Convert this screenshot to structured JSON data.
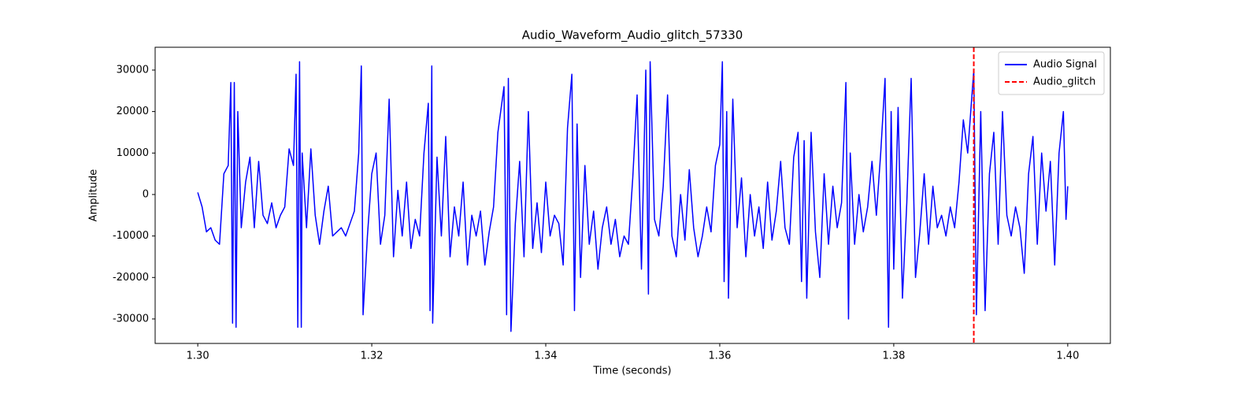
{
  "chart_data": {
    "type": "line",
    "title": "Audio_Waveform_Audio_glitch_57330",
    "xlabel": "Time (seconds)",
    "ylabel": "Amplitude",
    "x": [
      1.3,
      1.3005,
      1.301,
      1.3015,
      1.302,
      1.3025,
      1.303,
      1.3035,
      1.3038,
      1.304,
      1.3042,
      1.3044,
      1.3046,
      1.305,
      1.3055,
      1.306,
      1.3065,
      1.307,
      1.3075,
      1.308,
      1.3085,
      1.309,
      1.3095,
      1.31,
      1.3105,
      1.311,
      1.3113,
      1.3115,
      1.3117,
      1.3119,
      1.312,
      1.3125,
      1.313,
      1.3135,
      1.314,
      1.3145,
      1.315,
      1.3155,
      1.316,
      1.3165,
      1.317,
      1.3175,
      1.318,
      1.3185,
      1.3188,
      1.319,
      1.3195,
      1.32,
      1.3205,
      1.321,
      1.3215,
      1.322,
      1.3225,
      1.323,
      1.3235,
      1.324,
      1.3245,
      1.325,
      1.3255,
      1.326,
      1.3265,
      1.3267,
      1.3269,
      1.327,
      1.3275,
      1.328,
      1.3285,
      1.329,
      1.3295,
      1.33,
      1.3305,
      1.331,
      1.3315,
      1.332,
      1.3325,
      1.333,
      1.3335,
      1.334,
      1.3345,
      1.3352,
      1.3355,
      1.3357,
      1.336,
      1.3365,
      1.337,
      1.3375,
      1.338,
      1.3385,
      1.339,
      1.3395,
      1.34,
      1.3405,
      1.341,
      1.3415,
      1.342,
      1.3425,
      1.343,
      1.3433,
      1.3436,
      1.344,
      1.3445,
      1.345,
      1.3455,
      1.346,
      1.3465,
      1.347,
      1.3475,
      1.348,
      1.3485,
      1.349,
      1.3495,
      1.35,
      1.3505,
      1.351,
      1.3515,
      1.3518,
      1.352,
      1.3525,
      1.353,
      1.3535,
      1.354,
      1.3545,
      1.355,
      1.3555,
      1.356,
      1.3565,
      1.357,
      1.3575,
      1.358,
      1.3585,
      1.359,
      1.3595,
      1.36,
      1.3603,
      1.3605,
      1.3608,
      1.361,
      1.3615,
      1.362,
      1.3625,
      1.363,
      1.3635,
      1.364,
      1.3645,
      1.365,
      1.3655,
      1.366,
      1.3665,
      1.367,
      1.3675,
      1.368,
      1.3685,
      1.369,
      1.3694,
      1.3697,
      1.37,
      1.3705,
      1.371,
      1.3715,
      1.372,
      1.3725,
      1.373,
      1.3735,
      1.374,
      1.3745,
      1.3748,
      1.375,
      1.3755,
      1.376,
      1.3765,
      1.377,
      1.3775,
      1.378,
      1.3785,
      1.379,
      1.3794,
      1.3797,
      1.38,
      1.3805,
      1.381,
      1.3815,
      1.382,
      1.3825,
      1.383,
      1.3835,
      1.384,
      1.3845,
      1.385,
      1.3855,
      1.386,
      1.3865,
      1.387,
      1.3875,
      1.388,
      1.3885,
      1.3892,
      1.3895,
      1.39,
      1.3905,
      1.391,
      1.3915,
      1.392,
      1.3925,
      1.393,
      1.3935,
      1.394,
      1.3945,
      1.395,
      1.3955,
      1.396,
      1.3965,
      1.397,
      1.3975,
      1.398,
      1.3985,
      1.399,
      1.3995,
      1.3998,
      1.4
    ],
    "series": [
      {
        "name": "Audio Signal",
        "color": "#0000ff",
        "values": [
          500,
          -3000,
          -9000,
          -8000,
          -11000,
          -12000,
          5000,
          7000,
          27000,
          -31000,
          27000,
          -32000,
          20000,
          -8000,
          3000,
          9000,
          -8000,
          8000,
          -5000,
          -7000,
          -2000,
          -8000,
          -5000,
          -3000,
          11000,
          7000,
          29000,
          -32000,
          32000,
          -32000,
          10000,
          -8000,
          11000,
          -5000,
          -12000,
          -4000,
          2000,
          -10000,
          -9000,
          -8000,
          -10000,
          -7000,
          -4000,
          10000,
          31000,
          -29000,
          -10000,
          5000,
          10000,
          -12000,
          -5000,
          23000,
          -15000,
          1000,
          -10000,
          3000,
          -13000,
          -6000,
          -10000,
          10000,
          22000,
          -28000,
          31000,
          -31000,
          9000,
          -10000,
          14000,
          -15000,
          -3000,
          -10000,
          3000,
          -17000,
          -5000,
          -10000,
          -4000,
          -17000,
          -9000,
          -3000,
          15000,
          26000,
          -29000,
          28000,
          -33000,
          -7000,
          8000,
          -15000,
          20000,
          -13000,
          -2000,
          -14000,
          3000,
          -10000,
          -5000,
          -7000,
          -17000,
          16000,
          29000,
          -28000,
          17000,
          -20000,
          7000,
          -12000,
          -4000,
          -18000,
          -8000,
          -3000,
          -12000,
          -6000,
          -15000,
          -10000,
          -12000,
          4000,
          24000,
          -18000,
          30000,
          -24000,
          32000,
          -6000,
          -10000,
          2000,
          24000,
          -10000,
          -15000,
          0,
          -11000,
          6000,
          -8000,
          -15000,
          -10000,
          -3000,
          -9000,
          7000,
          12000,
          32000,
          -21000,
          20000,
          -25000,
          23000,
          -8000,
          4000,
          -15000,
          0,
          -10000,
          -3000,
          -13000,
          3000,
          -11000,
          -4000,
          8000,
          -8000,
          -12000,
          9000,
          15000,
          -21000,
          13000,
          -25000,
          15000,
          -9000,
          -20000,
          5000,
          -12000,
          2000,
          -8000,
          -2000,
          27000,
          -30000,
          10000,
          -12000,
          0,
          -9000,
          -3000,
          8000,
          -5000,
          10000,
          28000,
          -32000,
          20000,
          -18000,
          21000,
          -25000,
          -2000,
          28000,
          -20000,
          -9000,
          5000,
          -12000,
          2000,
          -8000,
          -5000,
          -10000,
          -3000,
          -8000,
          3000,
          18000,
          10000,
          30000,
          -29000,
          20000,
          -28000,
          5000,
          15000,
          -12000,
          20000,
          -5000,
          -10000,
          -3000,
          -8000,
          -19000,
          5000,
          14000,
          -12000,
          10000,
          -4000,
          8000,
          -17000,
          10000,
          20000,
          -6000,
          2000
        ]
      }
    ],
    "events": [
      {
        "name": "Audio_glitch",
        "x": 1.3892,
        "color": "#ff0000"
      }
    ],
    "xlim": [
      1.2951,
      1.4049
    ],
    "xticks": [
      {
        "value": 1.3,
        "label": "1.30"
      },
      1.32,
      1.34,
      1.36,
      1.38,
      {
        "value": 1.4,
        "label": "1.40"
      }
    ],
    "ylim": [
      -35900,
      35500
    ],
    "yticks": [
      -30000,
      -20000,
      -10000,
      0,
      10000,
      20000,
      30000
    ],
    "legend": "upper right",
    "grid": false
  }
}
